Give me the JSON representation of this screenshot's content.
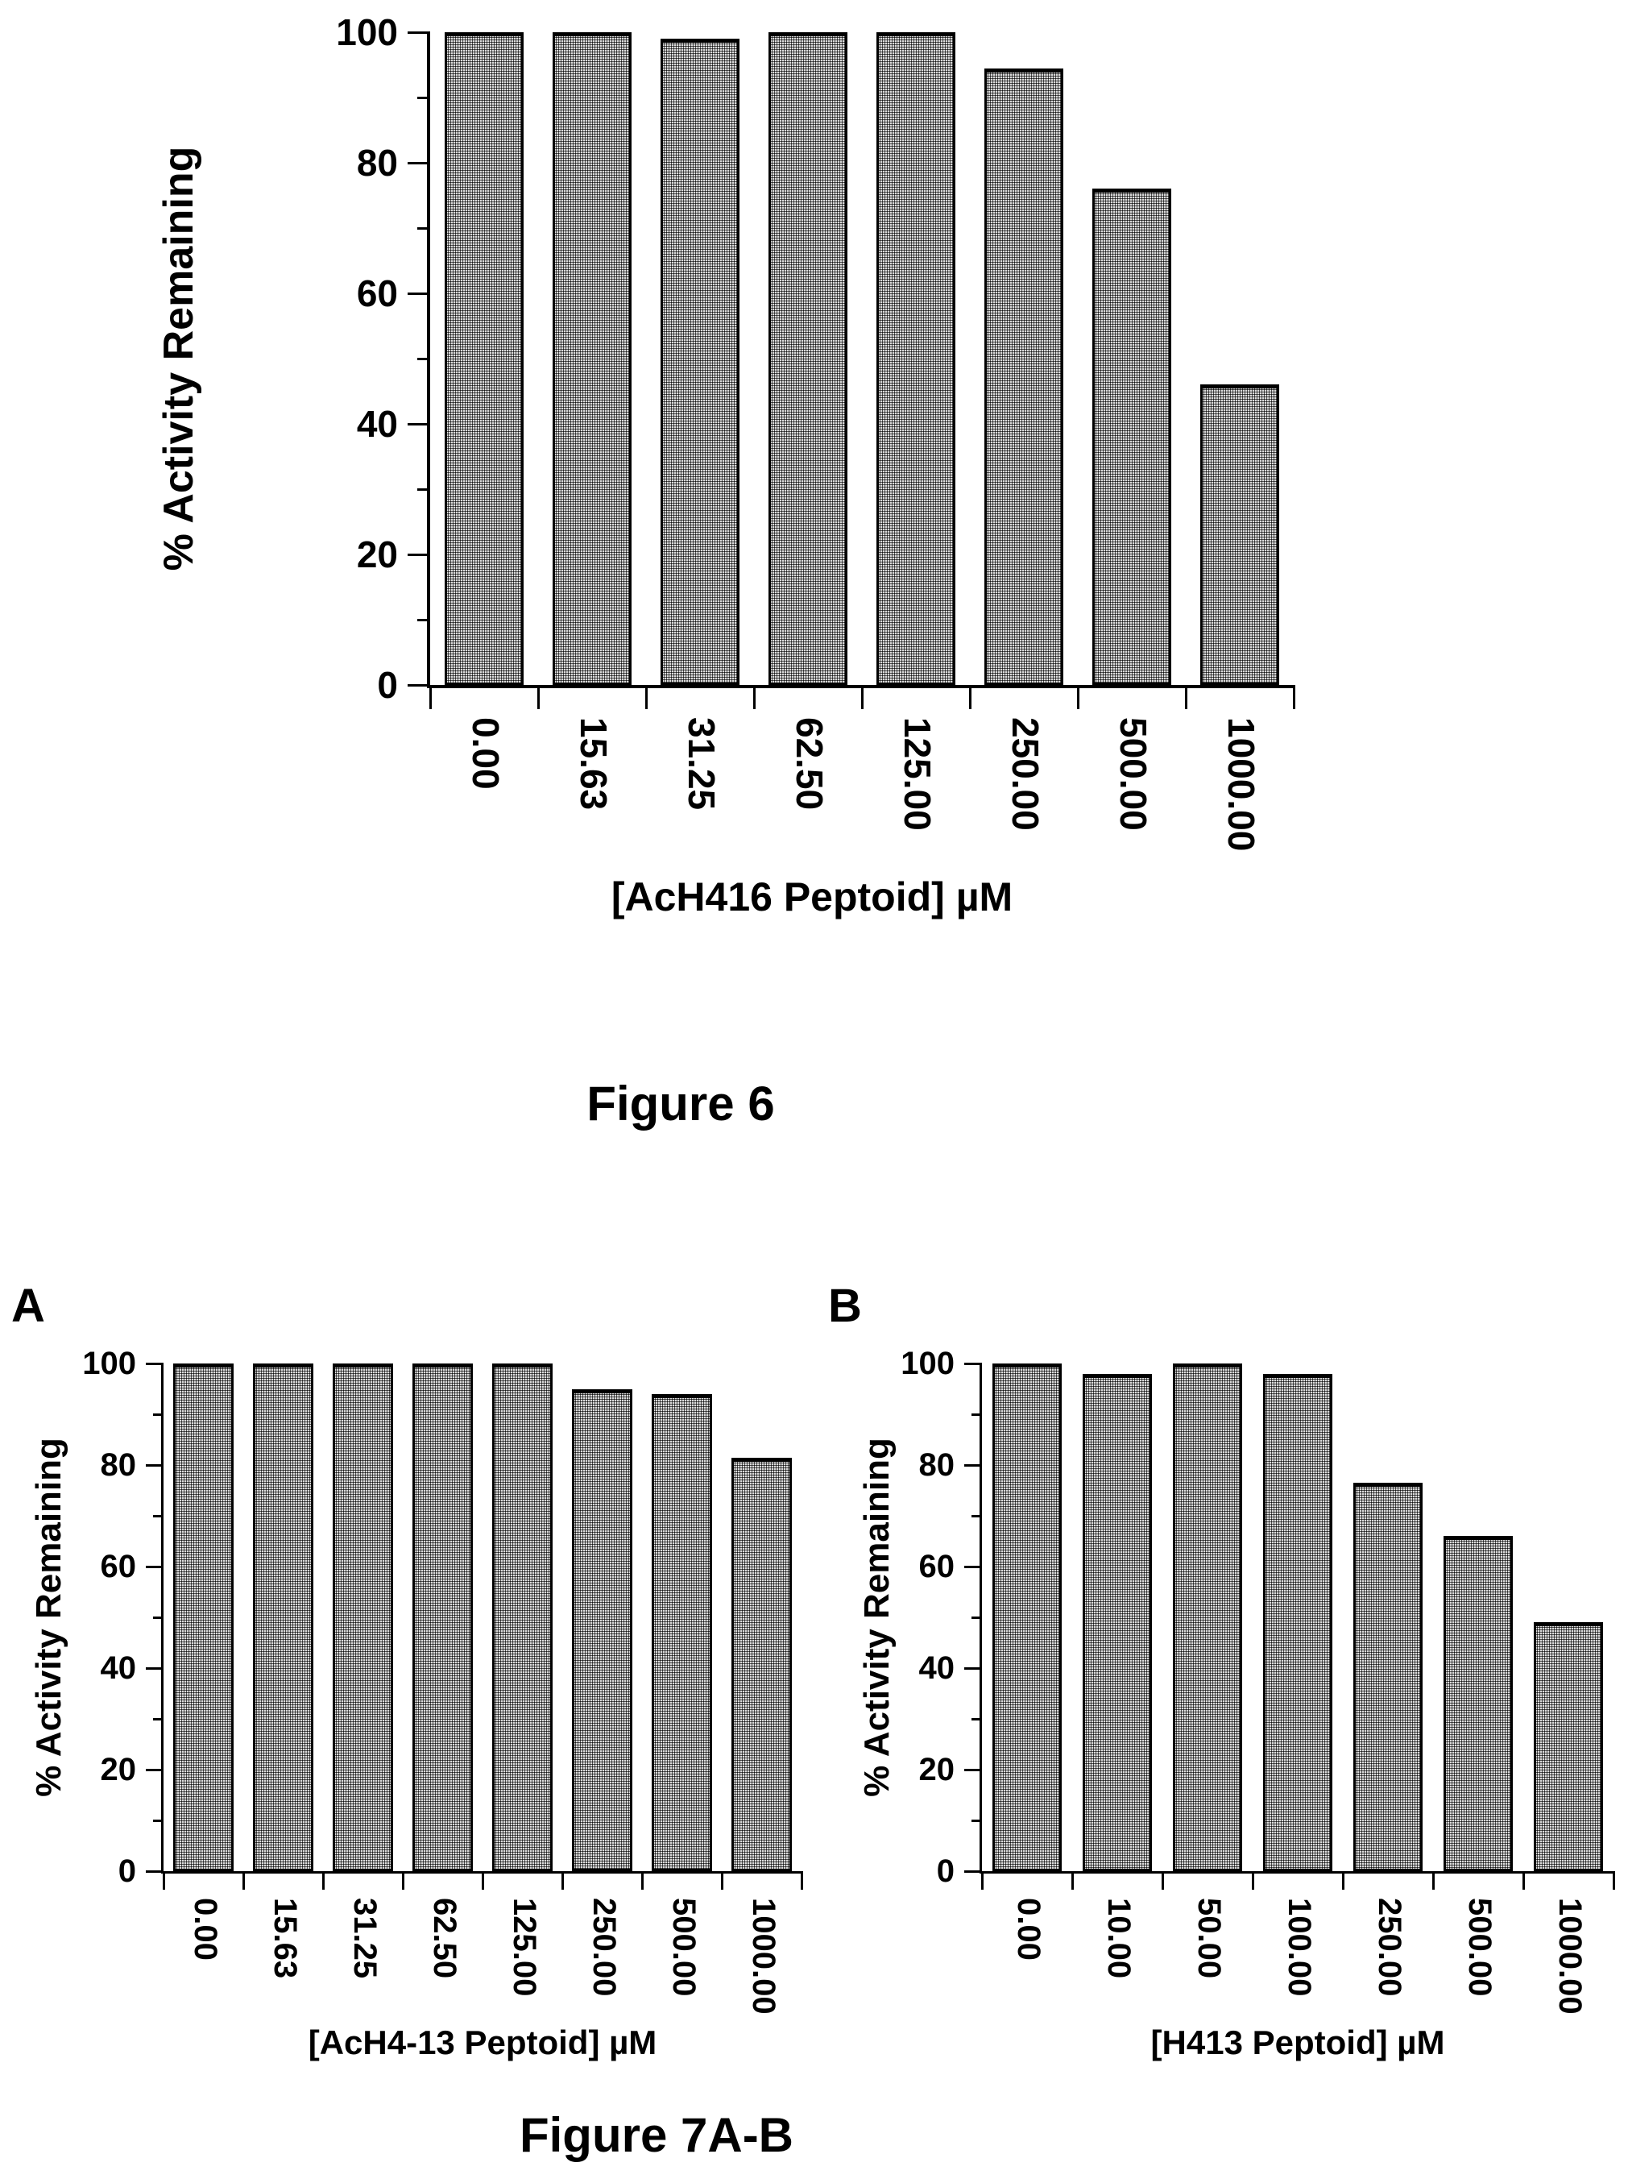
{
  "captions": {
    "figure6": "Figure 6",
    "figure7": "Figure 7A-B"
  },
  "panel_labels": {
    "a": "A",
    "b": "B"
  },
  "colors": {
    "background": "#ffffff",
    "text": "#000000",
    "axis": "#000000",
    "bar_fill": "#8f8f8f",
    "bar_border": "#000000"
  },
  "chart_data": [
    {
      "id": "fig6",
      "type": "bar",
      "panel": null,
      "title": "",
      "xlabel": "[AcH416 Peptoid] µM",
      "ylabel": "% Activity Remaining",
      "categories": [
        "0.00",
        "15.63",
        "31.25",
        "62.50",
        "125.00",
        "250.00",
        "500.00",
        "1000.00"
      ],
      "values": [
        100,
        100,
        99,
        100,
        100,
        94.5,
        76,
        46
      ],
      "ylim": [
        0,
        100
      ],
      "ytick_step": 20,
      "ytick_minor_step": 10,
      "yticklabels": [
        "0",
        "20",
        "40",
        "60",
        "80",
        "100"
      ],
      "xticklabel_rotation_deg": 90,
      "grid": false,
      "legend": null,
      "bar_width_frac": 0.73
    },
    {
      "id": "fig7a",
      "type": "bar",
      "panel": "A",
      "title": "",
      "xlabel": "[AcH4-13 Peptoid] µM",
      "ylabel": "% Activity Remaining",
      "categories": [
        "0.00",
        "15.63",
        "31.25",
        "62.50",
        "125.00",
        "250.00",
        "500.00",
        "1000.00"
      ],
      "values": [
        100,
        100,
        100,
        100,
        100,
        95,
        94,
        81.5
      ],
      "ylim": [
        0,
        100
      ],
      "ytick_step": 20,
      "ytick_minor_step": 10,
      "yticklabels": [
        "0",
        "20",
        "40",
        "60",
        "80",
        "100"
      ],
      "xticklabel_rotation_deg": 90,
      "grid": false,
      "legend": null,
      "bar_width_frac": 0.76
    },
    {
      "id": "fig7b",
      "type": "bar",
      "panel": "B",
      "title": "",
      "xlabel": "[H413 Peptoid] µM",
      "ylabel": "% Activity Remaining",
      "categories": [
        "0.00",
        "10.00",
        "50.00",
        "100.00",
        "250.00",
        "500.00",
        "1000.00"
      ],
      "values": [
        100,
        98,
        100,
        98,
        76.5,
        66,
        49
      ],
      "ylim": [
        0,
        100
      ],
      "ytick_step": 20,
      "ytick_minor_step": 10,
      "yticklabels": [
        "0",
        "20",
        "40",
        "60",
        "80",
        "100"
      ],
      "xticklabel_rotation_deg": 90,
      "grid": false,
      "legend": null,
      "bar_width_frac": 0.76
    }
  ]
}
